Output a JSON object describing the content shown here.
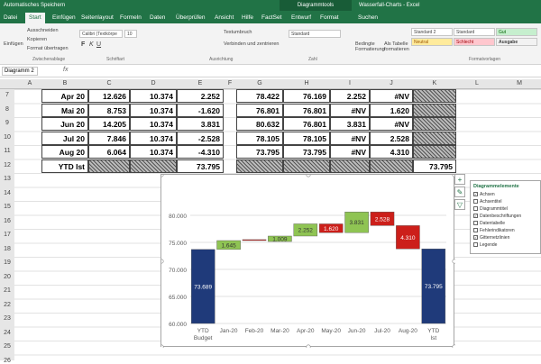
{
  "titlebar": {
    "autosave": "Automatisches Speichern",
    "context": "Diagrammtools",
    "doc": "Wasserfall-Charts - Excel"
  },
  "tabs": [
    "Datei",
    "Start",
    "Einfügen",
    "Seitenlayout",
    "Formeln",
    "Daten",
    "Überprüfen",
    "Ansicht",
    "Hilfe",
    "FactSet",
    "Entwurf",
    "Format",
    "Suchen"
  ],
  "ribbon": {
    "paste": "Einfügen",
    "cut": "Ausschneiden",
    "copy": "Kopieren",
    "format_painter": "Format übertragen",
    "clipboard": "Zwischenablage",
    "font": "Calibri (Textkörpe",
    "size": "10",
    "font_grp": "Schriftart",
    "wrap": "Textumbruch",
    "merge": "Verbinden und zentrieren",
    "align_grp": "Ausrichtung",
    "numfmt": "Standard",
    "num_grp": "Zahl",
    "cond": "Bedingte Formatierung",
    "astable": "Als Tabelle formatieren",
    "styles": [
      "Standard 2",
      "Standard",
      "Gut",
      "Neutral",
      "Schlecht",
      "Ausgabe"
    ],
    "styles_grp": "Formatvorlagen"
  },
  "namebox": "Diagramm 2",
  "fx": "fx",
  "columns": [
    "A",
    "B",
    "C",
    "D",
    "E",
    "F",
    "G",
    "H",
    "I",
    "J",
    "K",
    "L",
    "M"
  ],
  "rows": [
    "7",
    "8",
    "9",
    "10",
    "11",
    "12",
    "13",
    "14",
    "15",
    "16",
    "17",
    "18",
    "19",
    "20",
    "21",
    "22",
    "23",
    "24",
    "25",
    "26"
  ],
  "table": [
    {
      "b": "Apr 20",
      "c": "12.626",
      "d": "10.374",
      "e": "2.252",
      "g": "78.422",
      "h": "76.169",
      "i": "2.252",
      "j": "#NV"
    },
    {
      "b": "Mai 20",
      "c": "8.753",
      "d": "10.374",
      "e": "-1.620",
      "g": "76.801",
      "h": "76.801",
      "i": "#NV",
      "j": "1.620"
    },
    {
      "b": "Jun 20",
      "c": "14.205",
      "d": "10.374",
      "e": "3.831",
      "g": "80.632",
      "h": "76.801",
      "i": "3.831",
      "j": "#NV"
    },
    {
      "b": "Jul 20",
      "c": "7.846",
      "d": "10.374",
      "e": "-2.528",
      "g": "78.105",
      "h": "78.105",
      "i": "#NV",
      "j": "2.528"
    },
    {
      "b": "Aug 20",
      "c": "6.064",
      "d": "10.374",
      "e": "-4.310",
      "g": "73.795",
      "h": "73.795",
      "i": "#NV",
      "j": "4.310"
    },
    {
      "b": "YTD Ist",
      "c": "",
      "d": "",
      "e": "73.795",
      "g": "",
      "h": "",
      "i": "",
      "j": "",
      "k": "73.795"
    }
  ],
  "chart_data": {
    "type": "bar",
    "categories": [
      "YTD Budget",
      "Jan-20",
      "Feb-20",
      "Mar-20",
      "Apr-20",
      "May-20",
      "Jun-20",
      "Jul-20",
      "Aug-20",
      "YTD Ist"
    ],
    "base": [
      0,
      73.689,
      75.334,
      75.16,
      76.169,
      76.801,
      76.801,
      78.105,
      73.795,
      0
    ],
    "delta": [
      73.689,
      1.645,
      0.174,
      1.009,
      2.252,
      1.62,
      3.831,
      2.528,
      4.31,
      73.795
    ],
    "kind": [
      "total",
      "up",
      "down",
      "up",
      "up",
      "down",
      "up",
      "down",
      "down",
      "total"
    ],
    "labels": [
      "73.689",
      "1.645",
      "",
      "1.009",
      "2.252",
      "1.620",
      "3.831",
      "2.528",
      "4.310",
      "73.795"
    ],
    "ylim": [
      60,
      85
    ],
    "yticks": [
      "60.000",
      "65.000",
      "70.000",
      "75.000",
      "80.000"
    ],
    "colors": {
      "total": "#1f3a7a",
      "up": "#8fc453",
      "down": "#cc1f1a"
    }
  },
  "elements": {
    "title": "Diagrammelemente",
    "items": [
      {
        "label": "Achsen",
        "checked": true
      },
      {
        "label": "Achsentitel",
        "checked": false
      },
      {
        "label": "Diagrammtitel",
        "checked": false
      },
      {
        "label": "Datenbeschriftungen",
        "checked": true
      },
      {
        "label": "Datentabelle",
        "checked": false
      },
      {
        "label": "Fehlerindikatoren",
        "checked": false
      },
      {
        "label": "Gitternetzlinien",
        "checked": true
      },
      {
        "label": "Legende",
        "checked": false
      }
    ]
  }
}
